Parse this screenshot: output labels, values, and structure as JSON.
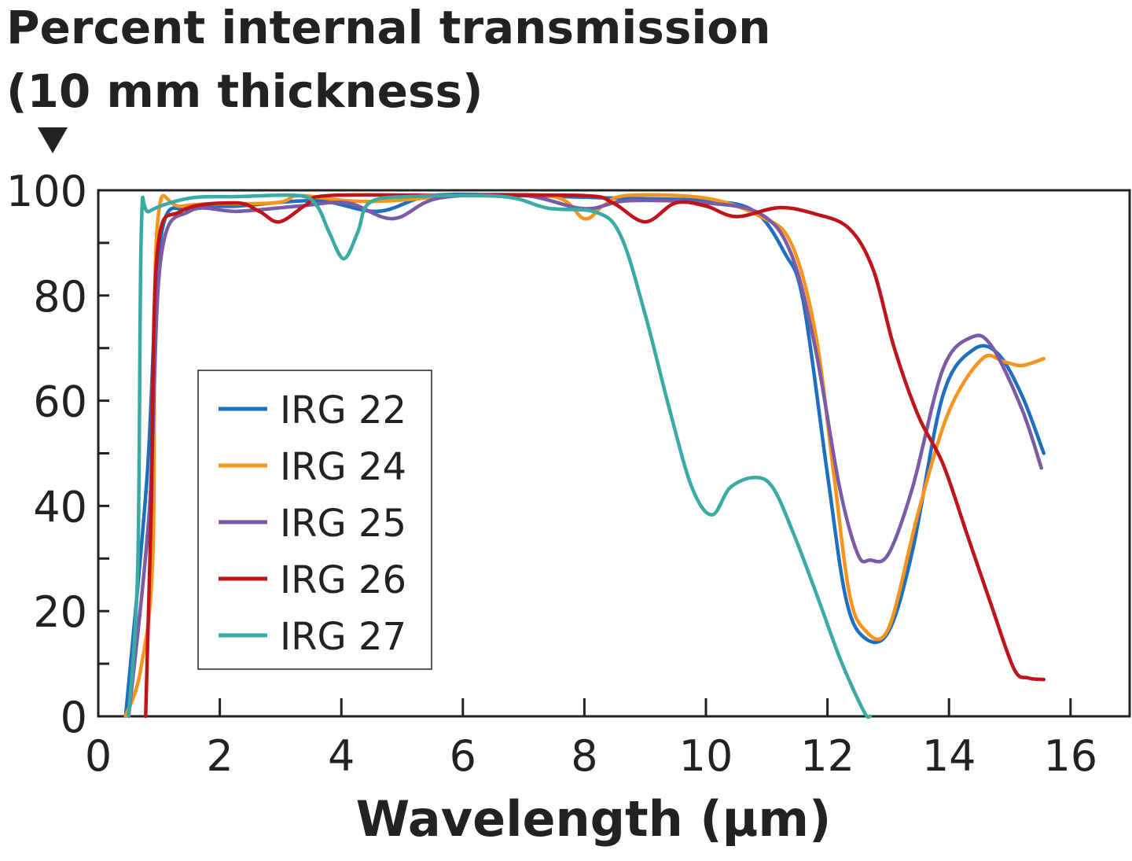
{
  "chart_data": {
    "type": "line",
    "title_lines": [
      "Percent internal transmission",
      "(10 mm thickness)"
    ],
    "xlabel": "Wavelength (µm)",
    "ylabel": "",
    "xlim": [
      0,
      17
    ],
    "ylim": [
      0,
      100
    ],
    "xticks": [
      0,
      2,
      4,
      6,
      8,
      10,
      12,
      14,
      16
    ],
    "yticks": [
      0,
      20,
      40,
      60,
      80,
      100
    ],
    "grid": false,
    "legend_position": "center-left",
    "series": [
      {
        "name": "IRG 22",
        "color": "#1f6fc0",
        "points": [
          [
            0.45,
            0
          ],
          [
            0.8,
            45
          ],
          [
            1.03,
            91
          ],
          [
            1.5,
            96.5
          ],
          [
            2.3,
            97
          ],
          [
            3.6,
            98
          ],
          [
            4.6,
            96
          ],
          [
            5.5,
            99
          ],
          [
            7,
            99
          ],
          [
            8.5,
            98.5
          ],
          [
            10,
            98
          ],
          [
            10.8,
            96
          ],
          [
            11.3,
            88
          ],
          [
            11.6,
            79
          ],
          [
            12,
            46
          ],
          [
            12.3,
            22.6
          ],
          [
            12.6,
            15
          ],
          [
            13,
            16
          ],
          [
            13.4,
            31.5
          ],
          [
            13.9,
            61
          ],
          [
            14.4,
            69.7
          ],
          [
            14.8,
            69
          ],
          [
            15.2,
            61
          ],
          [
            15.56,
            50
          ]
        ]
      },
      {
        "name": "IRG 24",
        "color": "#f7941d",
        "points": [
          [
            0.45,
            0
          ],
          [
            0.7,
            9
          ],
          [
            0.9,
            31
          ],
          [
            0.97,
            93
          ],
          [
            1.4,
            97
          ],
          [
            2.9,
            97.6
          ],
          [
            3.3,
            99
          ],
          [
            4.1,
            98
          ],
          [
            4.8,
            98
          ],
          [
            6,
            99
          ],
          [
            7.5,
            98.8
          ],
          [
            8,
            94.6
          ],
          [
            8.3,
            97
          ],
          [
            8.7,
            99
          ],
          [
            10,
            98.5
          ],
          [
            10.9,
            95
          ],
          [
            11.4,
            90
          ],
          [
            11.8,
            73
          ],
          [
            12.1,
            46.5
          ],
          [
            12.35,
            24
          ],
          [
            12.6,
            16.6
          ],
          [
            13,
            16.6
          ],
          [
            13.5,
            39
          ],
          [
            14,
            58
          ],
          [
            14.55,
            68
          ],
          [
            14.9,
            67.4
          ],
          [
            15.2,
            66.7
          ],
          [
            15.56,
            68
          ]
        ]
      },
      {
        "name": "IRG 25",
        "color": "#7b5aa6",
        "points": [
          [
            0.5,
            0
          ],
          [
            0.84,
            39
          ],
          [
            1.03,
            87
          ],
          [
            1.5,
            96
          ],
          [
            2.3,
            96
          ],
          [
            3.3,
            97
          ],
          [
            4.1,
            97.6
          ],
          [
            4.85,
            94.6
          ],
          [
            5.6,
            98.5
          ],
          [
            7,
            99
          ],
          [
            8,
            96.5
          ],
          [
            8.7,
            98
          ],
          [
            10,
            97.6
          ],
          [
            10.9,
            95.5
          ],
          [
            11.4,
            88
          ],
          [
            11.8,
            70
          ],
          [
            12.2,
            43.5
          ],
          [
            12.5,
            30.8
          ],
          [
            12.7,
            29.7
          ],
          [
            13,
            30.8
          ],
          [
            13.4,
            43.5
          ],
          [
            13.9,
            66
          ],
          [
            14.36,
            72
          ],
          [
            14.7,
            70.4
          ],
          [
            15.2,
            58.4
          ],
          [
            15.52,
            47.2
          ]
        ]
      },
      {
        "name": "IRG 26",
        "color": "#c0141b",
        "points": [
          [
            0.78,
            0
          ],
          [
            0.87,
            39
          ],
          [
            0.97,
            88
          ],
          [
            1.36,
            96
          ],
          [
            2.26,
            97.6
          ],
          [
            2.65,
            96
          ],
          [
            2.98,
            94
          ],
          [
            3.43,
            97.3
          ],
          [
            3.8,
            99
          ],
          [
            6,
            99
          ],
          [
            8,
            99
          ],
          [
            8.47,
            97.6
          ],
          [
            9,
            94
          ],
          [
            9.5,
            97.6
          ],
          [
            10,
            97
          ],
          [
            10.5,
            95
          ],
          [
            11.2,
            96.7
          ],
          [
            11.8,
            95.5
          ],
          [
            12.35,
            92.8
          ],
          [
            12.75,
            85
          ],
          [
            13.1,
            70
          ],
          [
            13.5,
            57
          ],
          [
            13.9,
            48
          ],
          [
            14.3,
            34.5
          ],
          [
            14.7,
            21
          ],
          [
            15.07,
            9
          ],
          [
            15.3,
            7.3
          ],
          [
            15.56,
            7
          ]
        ]
      },
      {
        "name": "IRG 27",
        "color": "#3aaaa5",
        "points": [
          [
            0.5,
            0
          ],
          [
            0.65,
            28.5
          ],
          [
            0.71,
            93
          ],
          [
            0.84,
            96
          ],
          [
            1.5,
            98.5
          ],
          [
            2.3,
            98.8
          ],
          [
            3.3,
            99
          ],
          [
            3.6,
            97
          ],
          [
            3.8,
            92
          ],
          [
            4.04,
            87
          ],
          [
            4.27,
            92
          ],
          [
            4.46,
            97.6
          ],
          [
            5.1,
            98.8
          ],
          [
            6.66,
            98.8
          ],
          [
            7.4,
            96.6
          ],
          [
            8.2,
            95.8
          ],
          [
            8.6,
            91.3
          ],
          [
            9,
            76.4
          ],
          [
            9.4,
            58.4
          ],
          [
            9.77,
            43.5
          ],
          [
            10.1,
            38.3
          ],
          [
            10.4,
            43.5
          ],
          [
            10.8,
            45.4
          ],
          [
            11.1,
            43.5
          ],
          [
            11.45,
            34.5
          ],
          [
            11.84,
            22.6
          ],
          [
            12.22,
            10.6
          ],
          [
            12.6,
            0.9
          ],
          [
            12.7,
            0
          ]
        ]
      }
    ]
  }
}
